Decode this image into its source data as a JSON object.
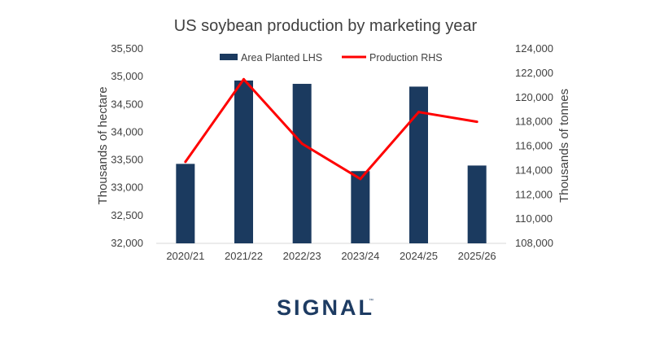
{
  "chart_data": {
    "type": "bar",
    "title": "US soybean production by marketing year",
    "categories": [
      "2020/21",
      "2021/22",
      "2022/23",
      "2023/24",
      "2024/25",
      "2025/26"
    ],
    "series": [
      {
        "name": "Area Planted LHS",
        "type": "bar",
        "axis": "left",
        "color": "#1b3a5f",
        "values": [
          33430,
          34930,
          34870,
          33300,
          34820,
          33400
        ]
      },
      {
        "name": "Production RHS",
        "type": "line",
        "axis": "right",
        "color": "#ff0000",
        "values": [
          114700,
          121500,
          116200,
          113300,
          118800,
          118000
        ]
      }
    ],
    "ylabel": "Thousands of hectare",
    "y2label": "Thousands of tonnes",
    "ylim": [
      32000,
      35500
    ],
    "y2lim": [
      108000,
      124000
    ],
    "yticks": [
      "32,000",
      "32,500",
      "33,000",
      "33,500",
      "34,000",
      "34,500",
      "35,000",
      "35,500"
    ],
    "y2ticks": [
      "108,000",
      "110,000",
      "112,000",
      "114,000",
      "116,000",
      "118,000",
      "120,000",
      "122,000",
      "124,000"
    ],
    "grid": false,
    "legend_position": "top"
  },
  "brand": {
    "logo_text": "SIGNAL",
    "trademark": "™",
    "color": "#1d3b62"
  }
}
